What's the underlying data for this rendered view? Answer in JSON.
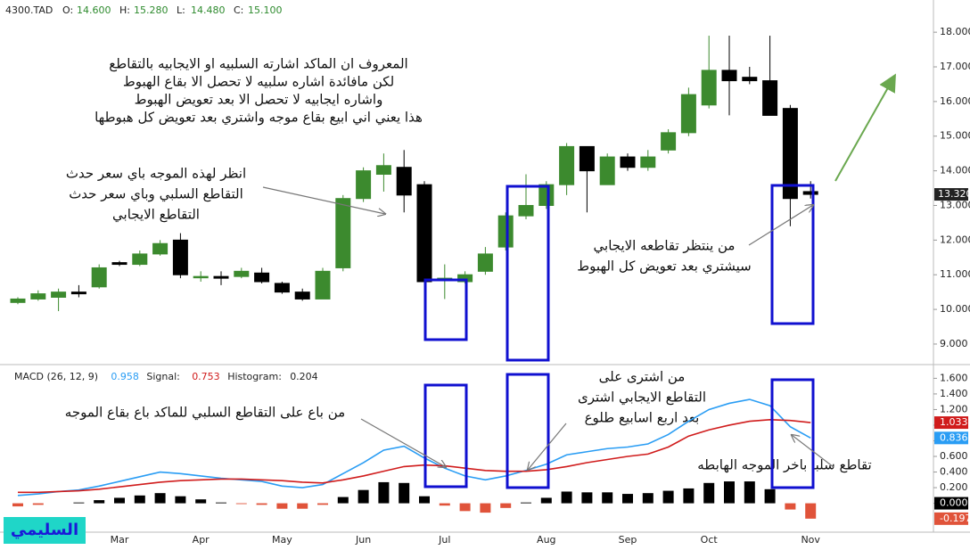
{
  "chart_data": [
    {
      "type": "candlestick",
      "title": "4300.TAD",
      "legend": [
        {
          "key": "O:",
          "value": "14.600"
        },
        {
          "key": "H:",
          "value": "15.280"
        },
        {
          "key": "L:",
          "value": "14.480"
        },
        {
          "key": "C:",
          "value": "15.100"
        }
      ],
      "up_color": "#3c8a2e",
      "down_color": "#000000",
      "open": [
        10.2,
        10.3,
        10.35,
        10.5,
        10.65,
        11.35,
        11.3,
        11.6,
        12.0,
        10.95,
        10.95,
        10.95,
        11.05,
        10.75,
        10.5,
        10.3,
        11.2,
        13.2,
        13.9,
        14.1,
        13.6,
        10.85,
        10.8,
        11.1,
        11.8,
        12.7,
        13.0,
        13.6,
        14.7,
        13.6,
        14.4,
        14.1,
        14.6,
        15.1,
        15.9,
        16.9,
        16.7,
        16.6,
        15.8,
        13.4
      ],
      "high": [
        10.35,
        10.55,
        10.6,
        10.7,
        11.3,
        11.4,
        11.7,
        12.0,
        12.2,
        11.1,
        11.1,
        11.2,
        11.2,
        10.8,
        10.6,
        11.2,
        13.3,
        14.1,
        14.5,
        14.6,
        13.7,
        11.3,
        11.1,
        11.8,
        12.8,
        13.9,
        13.7,
        14.8,
        14.7,
        14.5,
        14.5,
        14.6,
        15.2,
        16.4,
        17.9,
        17.9,
        17.0,
        17.9,
        15.9,
        13.7
      ],
      "low": [
        10.15,
        10.25,
        9.95,
        10.35,
        10.6,
        11.25,
        11.25,
        11.55,
        10.9,
        10.8,
        10.7,
        10.9,
        10.75,
        10.45,
        10.25,
        10.3,
        11.1,
        13.1,
        13.4,
        12.8,
        10.7,
        10.3,
        10.75,
        11.0,
        11.7,
        12.6,
        12.9,
        13.3,
        12.8,
        13.6,
        14.0,
        14.0,
        14.5,
        15.0,
        15.8,
        15.6,
        16.5,
        15.6,
        12.4,
        13.2
      ],
      "close": [
        10.3,
        10.45,
        10.5,
        10.45,
        11.2,
        11.3,
        11.6,
        11.9,
        11.0,
        10.95,
        10.9,
        11.1,
        10.8,
        10.5,
        10.3,
        11.1,
        13.2,
        14.0,
        14.15,
        13.3,
        10.8,
        10.9,
        11.0,
        11.6,
        12.7,
        13.0,
        13.6,
        14.7,
        14.0,
        14.4,
        14.1,
        14.4,
        15.1,
        16.2,
        16.9,
        16.6,
        16.6,
        15.6,
        13.2,
        13.32
      ],
      "price_tag": {
        "value": 13.32,
        "label": "13.320"
      },
      "ylim": [
        8.51,
        18.93
      ],
      "yticks": [
        {
          "value": 9,
          "label": "9.000"
        },
        {
          "value": 10,
          "label": "10.000"
        },
        {
          "value": 11,
          "label": "11.000"
        },
        {
          "value": 12,
          "label": "12.000"
        },
        {
          "value": 13,
          "label": "13.000"
        },
        {
          "value": 14,
          "label": "14.000"
        },
        {
          "value": 15,
          "label": "15.000"
        },
        {
          "value": 16,
          "label": "16.000"
        },
        {
          "value": 17,
          "label": "17.000"
        },
        {
          "value": 18,
          "label": "18.000"
        }
      ],
      "annotations": [
        [
          "المعروف ان الماكد اشارته السلبيه او الايجابيه بالتقاطع",
          "لكن مافائدة اشاره سلبيه لا تحصل الا بقاع الهبوط",
          "واشاره ايجابيه لا تحصل الا بعد تعويض الهبوط",
          "هذا يعني اني ابيع بقاع موجه واشتري بعد تعويض كل هبوطها"
        ],
        [
          "انظر لهذه الموجه باي سعر حدث",
          "التقاطع السلبي وباي سعر حدث",
          "التقاطع الايجابي"
        ],
        [
          "من ينتظر تقاطعه الايجابي",
          "سيشتري بعد تعويض كل الهبوط"
        ]
      ]
    },
    {
      "type": "macd",
      "categories": [
        null,
        null,
        null,
        null,
        null,
        "Mar",
        null,
        null,
        null,
        "Apr",
        null,
        null,
        null,
        "May",
        null,
        null,
        null,
        "Jun",
        null,
        null,
        null,
        "Jul",
        null,
        null,
        null,
        null,
        "Aug",
        null,
        null,
        null,
        "Sep",
        null,
        null,
        null,
        "Oct",
        null,
        null,
        null,
        null,
        "Nov"
      ],
      "series": [
        {
          "name": "MACD (26, 12, 9)",
          "color": "#2a9df4",
          "legend_value": 0.958,
          "values": [
            0.1,
            0.12,
            0.15,
            0.17,
            0.22,
            0.28,
            0.34,
            0.4,
            0.38,
            0.35,
            0.32,
            0.3,
            0.28,
            0.22,
            0.2,
            0.24,
            0.38,
            0.52,
            0.68,
            0.73,
            0.58,
            0.45,
            0.35,
            0.3,
            0.35,
            0.42,
            0.5,
            0.62,
            0.66,
            0.7,
            0.72,
            0.76,
            0.88,
            1.05,
            1.2,
            1.28,
            1.33,
            1.25,
            0.98,
            0.836
          ]
        },
        {
          "name": "Signal:",
          "color": "#d01c1c",
          "legend_value": 0.753,
          "values": [
            0.14,
            0.14,
            0.15,
            0.16,
            0.18,
            0.21,
            0.24,
            0.27,
            0.29,
            0.3,
            0.31,
            0.31,
            0.3,
            0.29,
            0.27,
            0.26,
            0.3,
            0.35,
            0.41,
            0.47,
            0.49,
            0.48,
            0.45,
            0.42,
            0.41,
            0.41,
            0.43,
            0.47,
            0.52,
            0.56,
            0.6,
            0.63,
            0.72,
            0.86,
            0.94,
            1.0,
            1.05,
            1.07,
            1.06,
            1.033
          ]
        },
        {
          "name": "Histogram:",
          "color": "#000000",
          "negative_color": "#e0533a",
          "legend_value": 0.204,
          "values": [
            -0.04,
            -0.02,
            0,
            0.01,
            0.04,
            0.07,
            0.1,
            0.13,
            0.09,
            0.05,
            0.01,
            -0.01,
            -0.02,
            -0.07,
            -0.07,
            -0.02,
            0.08,
            0.17,
            0.27,
            0.26,
            0.09,
            -0.03,
            -0.1,
            -0.12,
            -0.06,
            0.01,
            0.07,
            0.15,
            0.14,
            0.14,
            0.12,
            0.13,
            0.16,
            0.19,
            0.26,
            0.28,
            0.28,
            0.18,
            -0.08,
            -0.197
          ]
        }
      ],
      "ylim": [
        -0.37,
        1.73
      ],
      "yticks": [
        {
          "value": 0,
          "label": "0.000"
        },
        {
          "value": 0.2,
          "label": "0.200"
        },
        {
          "value": 0.4,
          "label": "0.400"
        },
        {
          "value": 0.6,
          "label": "0.600"
        },
        {
          "value": 0.8,
          "label": "0.800"
        },
        {
          "value": 1,
          "label": "1.000"
        },
        {
          "value": 1.2,
          "label": "1.200"
        },
        {
          "value": 1.4,
          "label": "1.400"
        },
        {
          "value": 1.6,
          "label": "1.600"
        }
      ],
      "annotations": [
        [
          "من باع على التقاطع السلبي للماكد باع بقاع الموجه"
        ],
        [
          "من اشترى على",
          "التقاطع الايجابي اشترى",
          "بعد اربع اسابيع طلوع"
        ],
        [
          "تقاطع سلبا باخر الموجه الهابطه"
        ]
      ]
    }
  ],
  "signature": "السليمي"
}
